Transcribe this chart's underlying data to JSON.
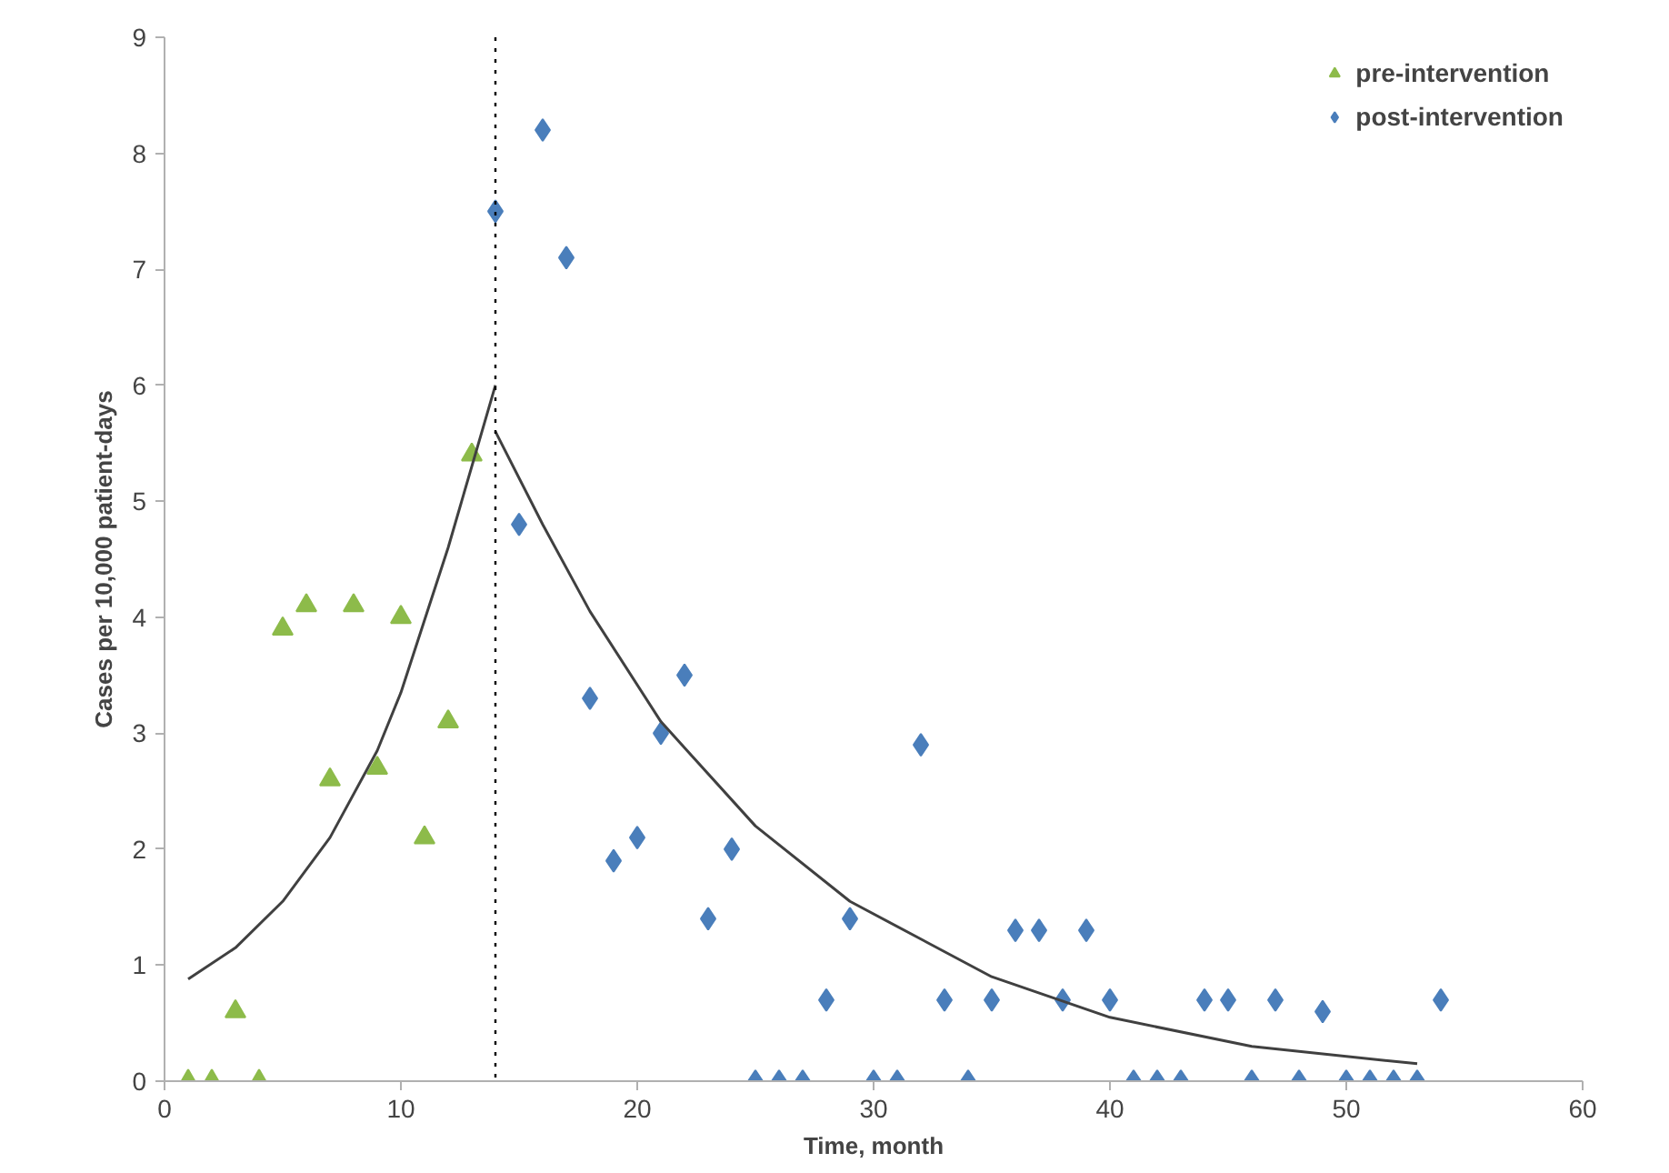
{
  "chart_data": {
    "type": "scatter",
    "xlabel": "Time, month",
    "ylabel": "Cases per 10,000 patient-days",
    "xlim": [
      0,
      60
    ],
    "xticks": [
      0,
      10,
      20,
      30,
      40,
      50,
      60
    ],
    "ylim": [
      0,
      9
    ],
    "yticks": [
      0,
      1,
      2,
      3,
      4,
      5,
      6,
      7,
      8,
      9
    ],
    "grid": false,
    "legend": "top right",
    "series": [
      {
        "name": "pre-intervention",
        "marker": "triangle",
        "color": "#8dbb4a",
        "x": [
          1,
          2,
          3,
          4,
          5,
          6,
          7,
          8,
          9,
          10,
          11,
          12,
          13
        ],
        "values": [
          0,
          0,
          0.6,
          0,
          3.9,
          4.1,
          2.6,
          4.1,
          2.7,
          4.0,
          2.1,
          3.1,
          5.4
        ]
      },
      {
        "name": "post-intervention",
        "marker": "diamond",
        "color": "#4a7ebb",
        "x": [
          14,
          15,
          16,
          17,
          18,
          19,
          20,
          21,
          22,
          23,
          24,
          25,
          26,
          27,
          28,
          29,
          30,
          31,
          32,
          33,
          34,
          35,
          36,
          37,
          38,
          39,
          40,
          41,
          42,
          43,
          44,
          45,
          46,
          47,
          48,
          49,
          50,
          51,
          52,
          53,
          54
        ],
        "values": [
          7.5,
          4.8,
          8.2,
          7.1,
          3.3,
          1.9,
          2.1,
          3.0,
          3.5,
          1.4,
          2.0,
          0,
          0,
          0,
          0.7,
          1.4,
          0,
          0,
          2.9,
          0.7,
          0,
          0.7,
          1.3,
          1.3,
          0.7,
          1.3,
          0.7,
          0,
          0,
          0,
          0.7,
          0.7,
          0,
          0.7,
          0,
          0.6,
          0,
          0,
          0,
          0,
          0.7
        ]
      },
      {
        "type": "line",
        "line_style": "solid",
        "color": "#404040",
        "x": [
          1,
          3,
          5,
          7,
          9,
          10,
          12,
          14
        ],
        "values": [
          0.88,
          1.15,
          1.55,
          2.1,
          2.85,
          3.35,
          4.6,
          6.0
        ]
      },
      {
        "type": "line",
        "line_style": "solid",
        "color": "#404040",
        "x": [
          14,
          16,
          18,
          21,
          25,
          29,
          35,
          40,
          46,
          53
        ],
        "values": [
          5.6,
          4.8,
          4.05,
          3.1,
          2.2,
          1.55,
          0.9,
          0.55,
          0.3,
          0.15
        ]
      }
    ],
    "ref_lines": [
      {
        "axis": "x",
        "value": 14,
        "color": "#000000",
        "line_style": "dotted"
      }
    ]
  }
}
